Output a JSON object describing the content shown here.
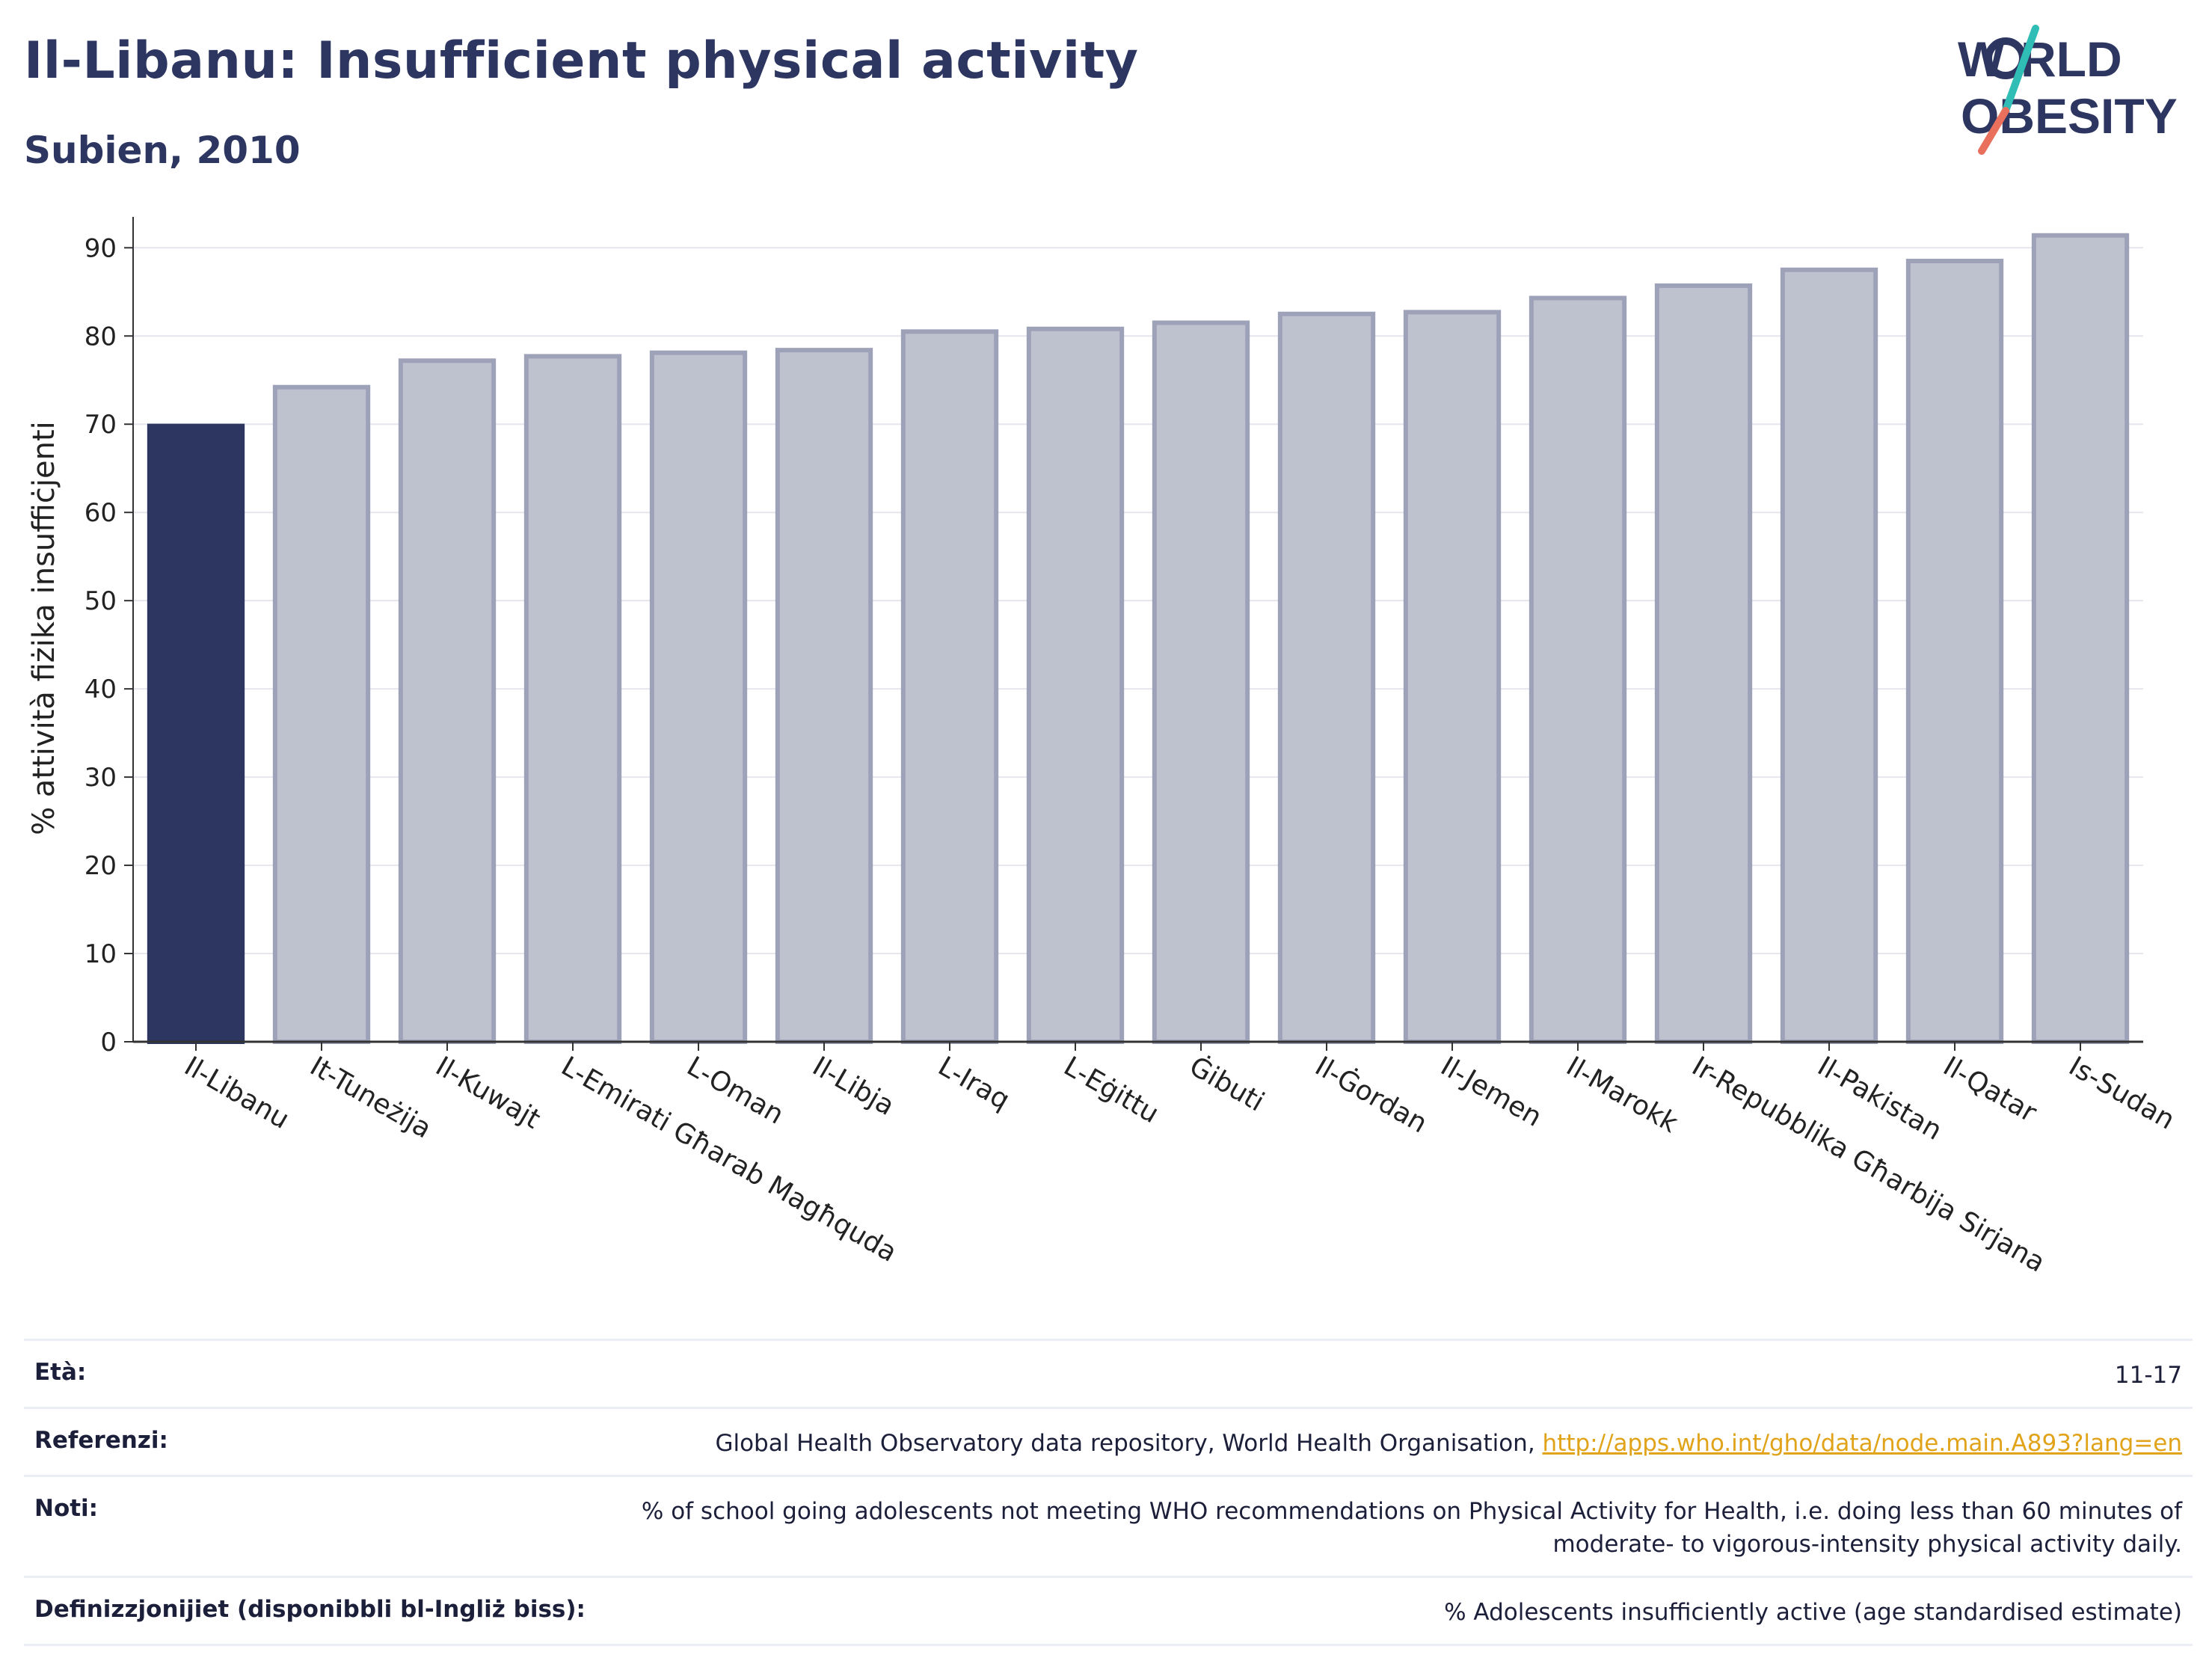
{
  "title": "Il-Libanu: Insufficient physical activity",
  "subtitle": "Subien, 2010",
  "logo": {
    "line1": "WORLD",
    "line2": "OBESITY",
    "accent_colors": [
      "#2fbdb5",
      "#e8705d"
    ]
  },
  "chart_data": {
    "type": "bar",
    "categories": [
      "Il-Libanu",
      "It-Tuneżija",
      "Il-Kuwajt",
      "L-Emirati Għarab Magħquda",
      "L-Oman",
      "Il-Libja",
      "L-Iraq",
      "L-Eġittu",
      "Ġibuti",
      "Il-Ġordan",
      "Il-Jemen",
      "Il-Marokk",
      "Ir-Repubblika Għarbija Sirjana",
      "Il-Pakistan",
      "Il-Qatar",
      "Is-Sudan"
    ],
    "values": [
      69.8,
      74.2,
      77.2,
      77.7,
      78.1,
      78.4,
      80.5,
      80.8,
      81.5,
      82.5,
      82.7,
      84.3,
      85.7,
      87.5,
      88.5,
      91.4
    ],
    "highlight_index": 0,
    "highlight_color": "#2c3660",
    "bar_color": "#bec1ce",
    "bar_stroke": "#9ea2b9",
    "ylabel": "% attività fiżika insuffiċjenti",
    "ylim": [
      0,
      90
    ],
    "yticks": [
      0,
      10,
      20,
      30,
      40,
      50,
      60,
      70,
      80,
      90
    ],
    "grid": true
  },
  "meta": [
    {
      "label": "Età:",
      "value": "11-17"
    },
    {
      "label": "Referenzi:",
      "value": "Global Health Observatory data repository, World Health Organisation, ",
      "link": "http://apps.who.int/gho/data/node.main.A893?lang=en"
    },
    {
      "label": "Noti:",
      "value": "% of school going adolescents not meeting WHO recommendations on Physical Activity for Health, i.e. doing less than 60 minutes of",
      "value2": "moderate- to vigorous-intensity physical activity daily."
    },
    {
      "label": "Definizzjonijiet (disponibbli bl-Ingliż biss):",
      "value": "% Adolescents insufficiently active (age standardised estimate)"
    }
  ]
}
